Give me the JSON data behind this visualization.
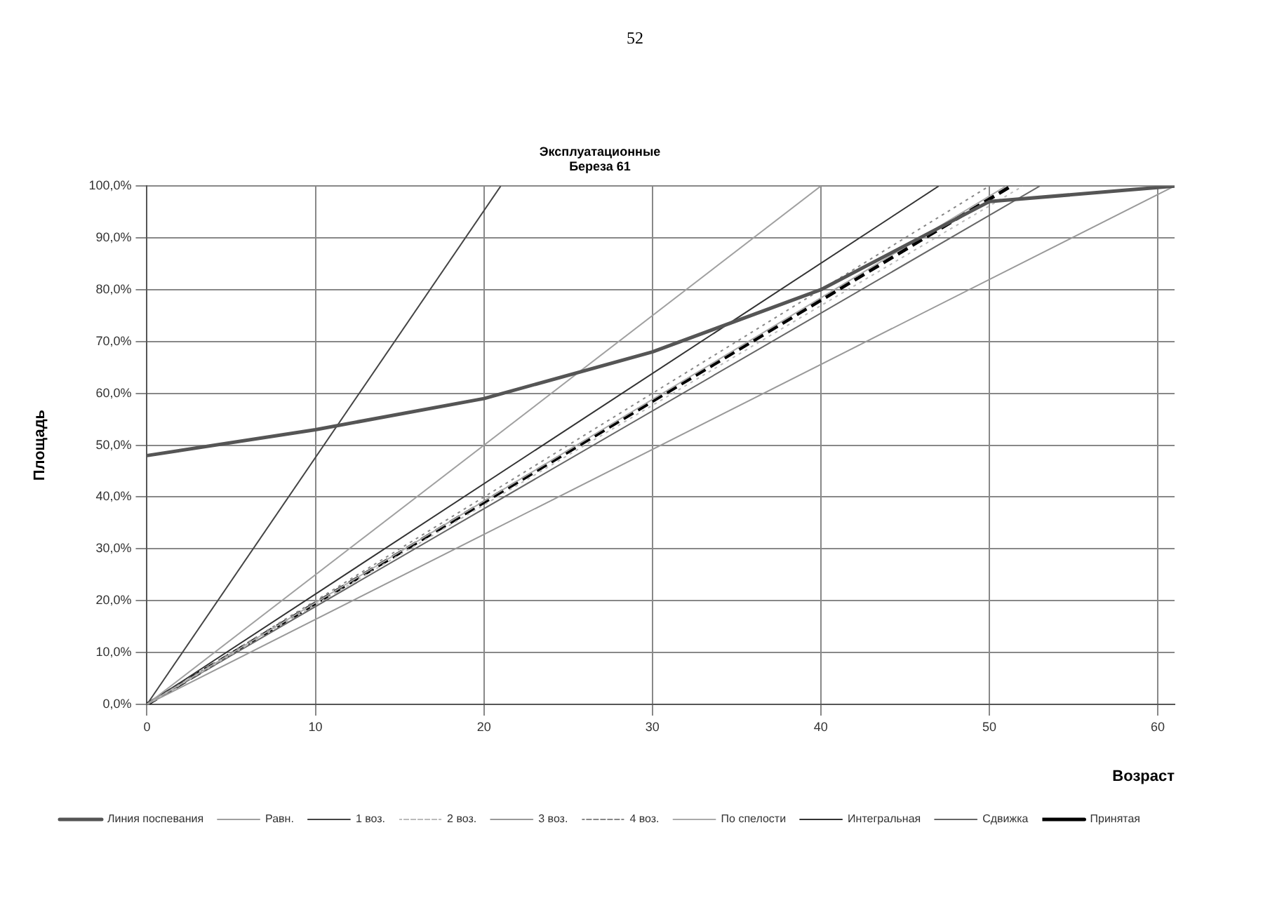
{
  "chart_data": {
    "type": "line",
    "title": "Эксплуатационные",
    "subtitle": "Береза 61",
    "xlabel": "Возраст",
    "ylabel": "Площадь",
    "annotations": [
      "52"
    ],
    "xlim": [
      0,
      61
    ],
    "xticks": [
      0,
      10,
      20,
      30,
      40,
      50,
      60
    ],
    "ylim": [
      0,
      100
    ],
    "yticks": [
      {
        "value": 0,
        "label": "0,0%"
      },
      {
        "value": 10,
        "label": "10,0%"
      },
      {
        "value": 20,
        "label": "20,0%"
      },
      {
        "value": 30,
        "label": "30,0%"
      },
      {
        "value": 40,
        "label": "40,0%"
      },
      {
        "value": 50,
        "label": "50,0%"
      },
      {
        "value": 60,
        "label": "60,0%"
      },
      {
        "value": 70,
        "label": "70,0%"
      },
      {
        "value": 80,
        "label": "80,0%"
      },
      {
        "value": 90,
        "label": "90,0%"
      },
      {
        "value": 100,
        "label": "100,0%"
      }
    ],
    "grid": true,
    "legend": "bottom",
    "marker": "none",
    "series": [
      {
        "name": "Линия поспевания",
        "color": "#555555",
        "x": [
          0,
          10,
          20,
          30,
          40,
          50,
          61
        ],
        "values": [
          48,
          53,
          59,
          68,
          80,
          97,
          100
        ]
      },
      {
        "name": "Равн.",
        "color": "#a0a0a0",
        "x": [
          0,
          40
        ],
        "values": [
          0,
          100
        ]
      },
      {
        "name": "1 воз.",
        "color": "#444444",
        "x": [
          0,
          21
        ],
        "values": [
          0,
          100
        ]
      },
      {
        "name": "2 воз.",
        "color": "#bbbbbb",
        "line_style": "dotted",
        "x": [
          0,
          52
        ],
        "values": [
          0,
          100
        ]
      },
      {
        "name": "3 воз.",
        "color": "#999999",
        "x": [
          0,
          61
        ],
        "values": [
          0,
          100
        ]
      },
      {
        "name": "4 воз.",
        "color": "#888888",
        "line_style": "dotted",
        "x": [
          0,
          50
        ],
        "values": [
          0,
          100
        ]
      },
      {
        "name": "По спелости",
        "color": "#aaaaaa",
        "x": [
          0,
          51
        ],
        "values": [
          0,
          100
        ]
      },
      {
        "name": "Интегральная",
        "color": "#333333",
        "x": [
          0,
          47
        ],
        "values": [
          0,
          100
        ]
      },
      {
        "name": "Сдвижка",
        "color": "#666666",
        "x": [
          0,
          53
        ],
        "values": [
          0,
          100
        ]
      },
      {
        "name": "Принятая",
        "color": "#000000",
        "line_style": "dashed",
        "x": [
          0,
          51.3
        ],
        "values": [
          0,
          100
        ]
      }
    ]
  }
}
